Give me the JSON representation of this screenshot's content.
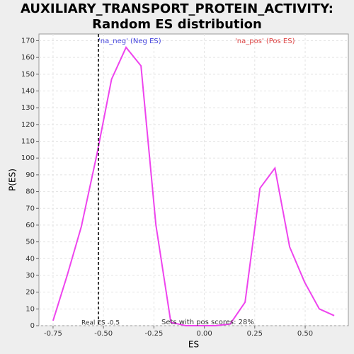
{
  "chart_data": {
    "type": "line",
    "title": "AUXILIARY_TRANSPORT_PROTEIN_ACTIVITY: Random ES distribution",
    "x_label": "ES",
    "y_label": "P(ES)",
    "x": [
      -0.75,
      -0.68,
      -0.61,
      -0.533,
      -0.46,
      -0.388,
      -0.314,
      -0.24,
      -0.166,
      -0.093,
      -0.019,
      0.055,
      0.128,
      0.202,
      0.276,
      0.35,
      0.423,
      0.497,
      0.57,
      0.644
    ],
    "series": [
      {
        "color": "#ee44ee",
        "values": [
          3,
          30,
          59,
          102,
          147,
          166,
          155,
          60,
          2,
          0,
          0,
          0,
          1,
          14,
          82,
          94,
          47,
          26,
          10,
          6
        ]
      }
    ],
    "xlim": [
      -0.82,
      0.714
    ],
    "ylim": [
      0,
      174
    ],
    "xticks": [
      {
        "value": -0.75,
        "label": "-0.75"
      },
      {
        "value": -0.5,
        "label": "-0.50"
      },
      {
        "value": -0.25,
        "label": "-0.25"
      },
      {
        "value": 0,
        "label": "0.00"
      },
      {
        "value": 0.25,
        "label": "0.25"
      },
      {
        "value": 0.5,
        "label": "0.50"
      }
    ],
    "yticks": [
      0,
      10,
      20,
      30,
      40,
      50,
      60,
      70,
      80,
      90,
      100,
      110,
      120,
      130,
      140,
      150,
      160,
      170
    ],
    "grid": true,
    "real_es": {
      "value": -0.525,
      "label": "Real ES -0.5"
    },
    "neg_label": "'na_neg' (Neg ES)",
    "neg_color": "#4444dd",
    "pos_label": "'na_pos' (Pos ES)",
    "pos_color": "#dd4444",
    "pos_scores": "Sets with pos scores: 28%"
  }
}
